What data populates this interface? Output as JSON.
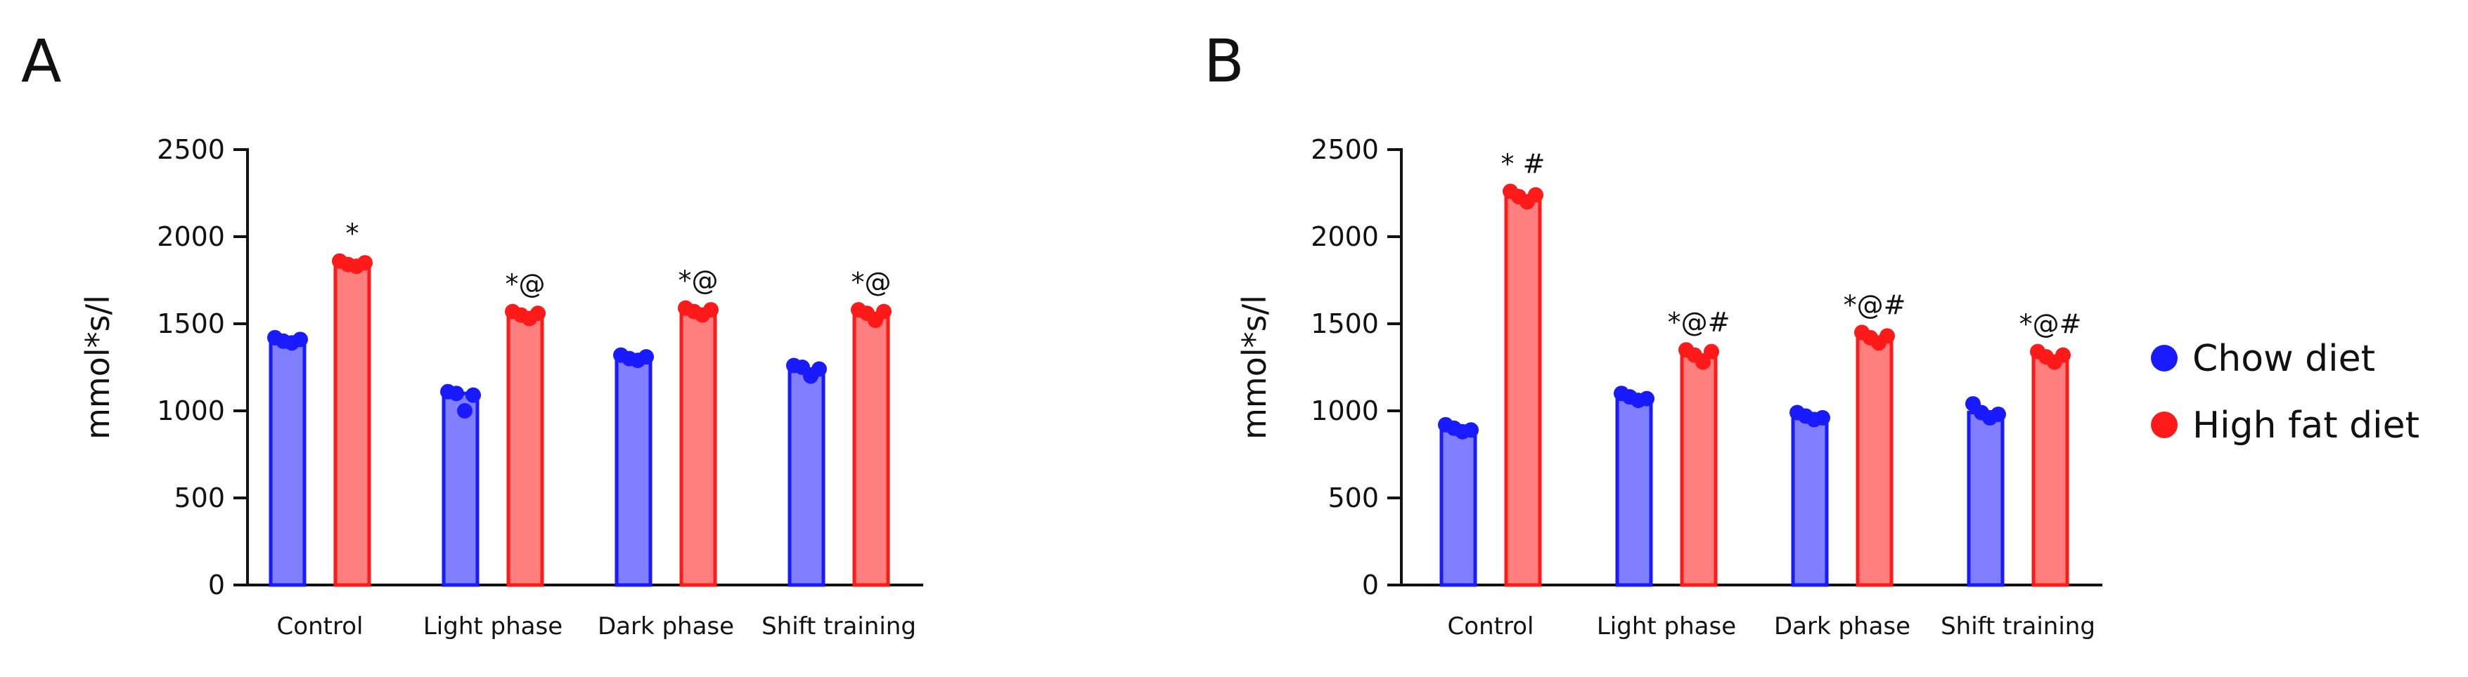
{
  "colors": {
    "chow_fill": "#7f7fff",
    "chow_stroke": "#1a1aff",
    "chow_dot": "#1a1aff",
    "hfd_fill": "#ff7f7f",
    "hfd_stroke": "#ff1a1a",
    "hfd_dot": "#ff1a1a",
    "axis": "#111111"
  },
  "legend": {
    "items": [
      {
        "label": "Chow diet",
        "color": "#1a1aff"
      },
      {
        "label": "High fat diet",
        "color": "#ff1a1a"
      }
    ],
    "placement": "right"
  },
  "chart_data": [
    {
      "panel": "A",
      "type": "bar",
      "ylabel": "mmol*s/l",
      "xlabel": "",
      "ylim": [
        0,
        2500
      ],
      "yticks": [
        0,
        500,
        1000,
        1500,
        2000,
        2500
      ],
      "categories": [
        "Control",
        "Light phase",
        "Dark phase",
        "Shift training"
      ],
      "series": [
        {
          "name": "Chow diet",
          "values": [
            1400,
            1100,
            1300,
            1240
          ],
          "points": [
            [
              1420,
              1400,
              1390,
              1410
            ],
            [
              1110,
              1100,
              1000,
              1090
            ],
            [
              1320,
              1300,
              1290,
              1310
            ],
            [
              1260,
              1250,
              1200,
              1240
            ]
          ]
        },
        {
          "name": "High fat diet",
          "values": [
            1840,
            1550,
            1570,
            1560
          ],
          "points": [
            [
              1860,
              1840,
              1830,
              1850
            ],
            [
              1570,
              1550,
              1530,
              1560
            ],
            [
              1590,
              1570,
              1550,
              1580
            ],
            [
              1580,
              1560,
              1520,
              1570
            ]
          ]
        }
      ],
      "annotations": [
        "*",
        "*@",
        "*@",
        "*@"
      ]
    },
    {
      "panel": "B",
      "type": "bar",
      "ylabel": "mmol*s/l",
      "xlabel": "",
      "ylim": [
        0,
        2500
      ],
      "yticks": [
        0,
        500,
        1000,
        1500,
        2000,
        2500
      ],
      "categories": [
        "Control",
        "Light phase",
        "Dark phase",
        "Shift training"
      ],
      "series": [
        {
          "name": "Chow diet",
          "values": [
            900,
            1080,
            970,
            990
          ],
          "points": [
            [
              920,
              900,
              880,
              890
            ],
            [
              1100,
              1080,
              1060,
              1070
            ],
            [
              990,
              970,
              950,
              960
            ],
            [
              1040,
              990,
              960,
              980
            ]
          ]
        },
        {
          "name": "High fat diet",
          "values": [
            2230,
            1320,
            1420,
            1310
          ],
          "points": [
            [
              2260,
              2230,
              2200,
              2240
            ],
            [
              1350,
              1320,
              1280,
              1340
            ],
            [
              1450,
              1420,
              1390,
              1430
            ],
            [
              1340,
              1310,
              1280,
              1320
            ]
          ]
        }
      ],
      "annotations": [
        "* #",
        "*@#",
        "*@#",
        "*@#"
      ]
    }
  ]
}
